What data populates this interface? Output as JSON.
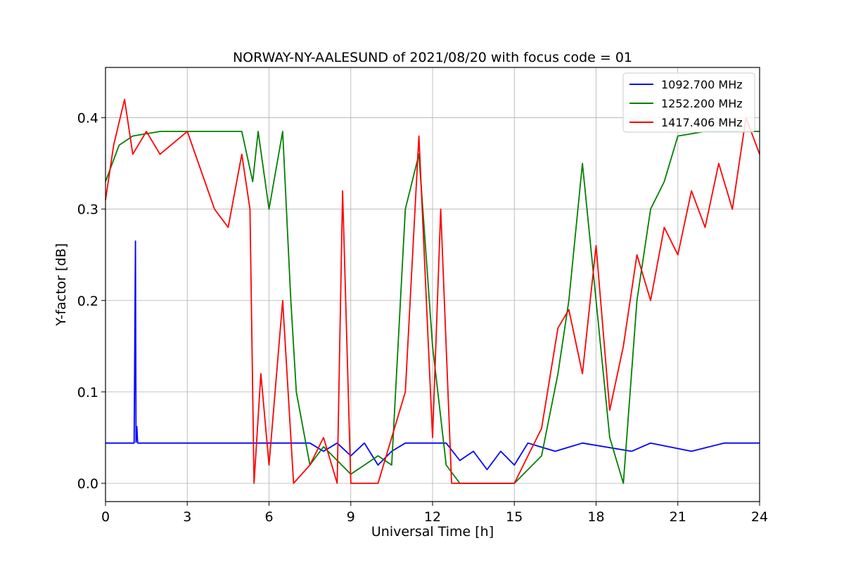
{
  "chart_data": {
    "type": "line",
    "title": "NORWAY-NY-AALESUND of 2021/08/20 with focus code = 01",
    "xlabel": "Universal Time [h]",
    "ylabel": "Y-factor [dB]",
    "xlim": [
      0,
      24
    ],
    "ylim": [
      -0.02,
      0.455
    ],
    "xticks": [
      0,
      3,
      6,
      9,
      12,
      15,
      18,
      21,
      24
    ],
    "yticks": [
      0.0,
      0.1,
      0.2,
      0.3,
      0.4
    ],
    "xtick_labels": [
      "0",
      "3",
      "6",
      "9",
      "12",
      "15",
      "18",
      "21",
      "24"
    ],
    "ytick_labels": [
      "0.0",
      "0.1",
      "0.2",
      "0.3",
      "0.4"
    ],
    "grid": true,
    "legend_position": "top-right",
    "series": [
      {
        "name": "1092.700 MHz",
        "color": "#0000ff",
        "points": [
          [
            0,
            0.044
          ],
          [
            1.05,
            0.044
          ],
          [
            1.1,
            0.265
          ],
          [
            1.12,
            0.045
          ],
          [
            1.15,
            0.062
          ],
          [
            1.18,
            0.044
          ],
          [
            7.5,
            0.044
          ],
          [
            8.0,
            0.035
          ],
          [
            8.5,
            0.044
          ],
          [
            9.0,
            0.03
          ],
          [
            9.5,
            0.044
          ],
          [
            10.0,
            0.02
          ],
          [
            10.5,
            0.035
          ],
          [
            11.0,
            0.044
          ],
          [
            12.5,
            0.044
          ],
          [
            13.0,
            0.025
          ],
          [
            13.5,
            0.035
          ],
          [
            14.0,
            0.015
          ],
          [
            14.5,
            0.035
          ],
          [
            15.0,
            0.02
          ],
          [
            15.5,
            0.044
          ],
          [
            16.5,
            0.035
          ],
          [
            17.5,
            0.044
          ],
          [
            19.3,
            0.035
          ],
          [
            20.0,
            0.044
          ],
          [
            21.5,
            0.035
          ],
          [
            22.7,
            0.044
          ],
          [
            24,
            0.044
          ]
        ]
      },
      {
        "name": "1252.200 MHz",
        "color": "#008000",
        "points": [
          [
            0,
            0.33
          ],
          [
            0.5,
            0.37
          ],
          [
            1.0,
            0.38
          ],
          [
            2.0,
            0.385
          ],
          [
            3.0,
            0.385
          ],
          [
            4.0,
            0.385
          ],
          [
            5.0,
            0.385
          ],
          [
            5.4,
            0.33
          ],
          [
            5.6,
            0.385
          ],
          [
            6.0,
            0.3
          ],
          [
            6.5,
            0.385
          ],
          [
            6.8,
            0.2
          ],
          [
            7.0,
            0.1
          ],
          [
            7.5,
            0.02
          ],
          [
            8.0,
            0.04
          ],
          [
            9.0,
            0.01
          ],
          [
            10.0,
            0.03
          ],
          [
            10.5,
            0.02
          ],
          [
            11.0,
            0.3
          ],
          [
            11.5,
            0.36
          ],
          [
            12.0,
            0.15
          ],
          [
            12.5,
            0.02
          ],
          [
            13.0,
            0.0
          ],
          [
            15.0,
            0.0
          ],
          [
            16.0,
            0.03
          ],
          [
            16.6,
            0.12
          ],
          [
            17.0,
            0.2
          ],
          [
            17.5,
            0.35
          ],
          [
            18.0,
            0.2
          ],
          [
            18.5,
            0.05
          ],
          [
            19.0,
            0.0
          ],
          [
            19.5,
            0.2
          ],
          [
            20.0,
            0.3
          ],
          [
            20.5,
            0.33
          ],
          [
            21.0,
            0.38
          ],
          [
            22.0,
            0.385
          ],
          [
            23.0,
            0.385
          ],
          [
            24,
            0.385
          ]
        ]
      },
      {
        "name": "1417.406 MHz",
        "color": "#ff0000",
        "points": [
          [
            0,
            0.31
          ],
          [
            0.3,
            0.37
          ],
          [
            0.7,
            0.42
          ],
          [
            1.0,
            0.36
          ],
          [
            1.5,
            0.385
          ],
          [
            2.0,
            0.36
          ],
          [
            3.0,
            0.385
          ],
          [
            4.0,
            0.3
          ],
          [
            4.5,
            0.28
          ],
          [
            5.0,
            0.36
          ],
          [
            5.3,
            0.3
          ],
          [
            5.45,
            0.0
          ],
          [
            5.7,
            0.12
          ],
          [
            6.0,
            0.02
          ],
          [
            6.5,
            0.2
          ],
          [
            6.9,
            0.0
          ],
          [
            7.5,
            0.02
          ],
          [
            8.0,
            0.05
          ],
          [
            8.5,
            0.0
          ],
          [
            8.7,
            0.32
          ],
          [
            9.0,
            0.0
          ],
          [
            10.0,
            0.0
          ],
          [
            10.5,
            0.05
          ],
          [
            11.0,
            0.1
          ],
          [
            11.5,
            0.38
          ],
          [
            12.0,
            0.05
          ],
          [
            12.3,
            0.3
          ],
          [
            12.7,
            0.0
          ],
          [
            14.0,
            0.0
          ],
          [
            15.0,
            0.0
          ],
          [
            15.5,
            0.03
          ],
          [
            16.0,
            0.06
          ],
          [
            16.6,
            0.17
          ],
          [
            17.0,
            0.19
          ],
          [
            17.5,
            0.12
          ],
          [
            18.0,
            0.26
          ],
          [
            18.5,
            0.08
          ],
          [
            19.0,
            0.15
          ],
          [
            19.5,
            0.25
          ],
          [
            20.0,
            0.2
          ],
          [
            20.5,
            0.28
          ],
          [
            21.0,
            0.25
          ],
          [
            21.5,
            0.32
          ],
          [
            22.0,
            0.28
          ],
          [
            22.5,
            0.35
          ],
          [
            23.0,
            0.3
          ],
          [
            23.5,
            0.4
          ],
          [
            24,
            0.36
          ]
        ]
      }
    ]
  }
}
